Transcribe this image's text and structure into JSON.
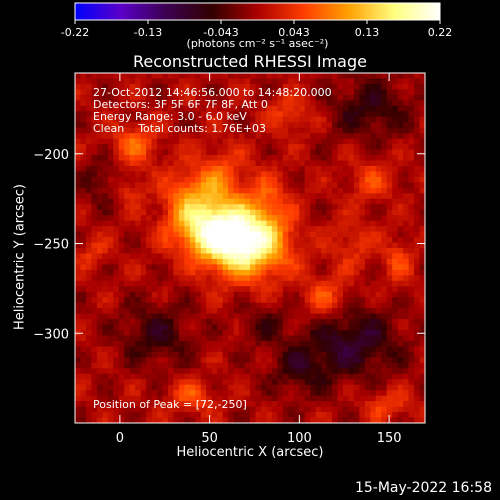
{
  "title": "Reconstructed RHESSI Image",
  "footer_timestamp": "15-May-2022 16:58",
  "colorbar": {
    "ticks": [
      "-0.22",
      "-0.13",
      "-0.043",
      "0.043",
      "0.13",
      "0.22"
    ],
    "unit_label": "(photons cm⁻² s⁻¹ asec⁻²)",
    "colormap": [
      "#0000ff",
      "#5a00c8",
      "#3c0050",
      "#320000",
      "#aa0000",
      "#ff3c00",
      "#ffa000",
      "#ffff80",
      "#ffffff"
    ]
  },
  "annotations": {
    "time_range": "27-Oct-2012 14:46:56.000 to 14:48:20.000",
    "detectors": "Detectors: 3F 5F 6F 7F 8F, Att 0",
    "energy_range": "Energy Range: 3.0 - 6.0 keV",
    "clean_info": "Clean    Total counts: 1.76E+03",
    "peak_position": "Position of Peak = [72,-250]"
  },
  "chart_data": {
    "type": "heatmap",
    "title": "Reconstructed RHESSI Image",
    "xlabel": "Heliocentric X (arcsec)",
    "ylabel": "Heliocentric Y (arcsec)",
    "xlim": [
      -25,
      170
    ],
    "ylim": [
      -350,
      -155
    ],
    "xticks": [
      0,
      50,
      100,
      150
    ],
    "yticks": [
      -200,
      -250,
      -300
    ],
    "zlim": [
      -0.22,
      0.22
    ],
    "peak": {
      "x": 72,
      "y": -250,
      "value": 0.22
    },
    "sources": [
      {
        "x": 70,
        "y": -250,
        "amp": 0.2,
        "sx": 16,
        "sy": 13
      },
      {
        "x": 52,
        "y": -243,
        "amp": 0.13,
        "sx": 15,
        "sy": 10
      },
      {
        "x": 40,
        "y": -225,
        "amp": 0.09,
        "sx": 11,
        "sy": 12
      },
      {
        "x": 58,
        "y": -215,
        "amp": 0.06,
        "sx": 9,
        "sy": 13
      },
      {
        "x": 82,
        "y": -225,
        "amp": 0.05,
        "sx": 8,
        "sy": 11
      },
      {
        "x": 8,
        "y": -195,
        "amp": 0.07,
        "sx": 9,
        "sy": 8
      },
      {
        "x": 5,
        "y": -220,
        "amp": 0.04,
        "sx": 6,
        "sy": 6
      },
      {
        "x": 95,
        "y": -178,
        "amp": 0.05,
        "sx": 9,
        "sy": 7
      },
      {
        "x": 115,
        "y": -280,
        "amp": 0.06,
        "sx": 9,
        "sy": 9
      },
      {
        "x": 130,
        "y": -250,
        "amp": 0.04,
        "sx": 8,
        "sy": 10
      },
      {
        "x": 40,
        "y": -335,
        "amp": 0.06,
        "sx": 9,
        "sy": 6
      },
      {
        "x": 150,
        "y": -340,
        "amp": 0.05,
        "sx": 10,
        "sy": 6
      },
      {
        "x": -15,
        "y": -255,
        "amp": 0.04,
        "sx": 6,
        "sy": 6
      },
      {
        "x": 140,
        "y": -215,
        "amp": 0.05,
        "sx": 9,
        "sy": 8
      },
      {
        "x": 155,
        "y": -260,
        "amp": 0.05,
        "sx": 6,
        "sy": 9
      },
      {
        "x": 20,
        "y": -300,
        "amp": -0.06,
        "sx": 14,
        "sy": 12
      },
      {
        "x": 130,
        "y": -305,
        "amp": -0.08,
        "sx": 18,
        "sy": 14
      },
      {
        "x": 140,
        "y": -175,
        "amp": -0.06,
        "sx": 16,
        "sy": 12
      },
      {
        "x": 100,
        "y": -320,
        "amp": -0.05,
        "sx": 12,
        "sy": 10
      },
      {
        "x": -10,
        "y": -215,
        "amp": -0.04,
        "sx": 8,
        "sy": 10
      },
      {
        "x": 80,
        "y": -295,
        "amp": -0.04,
        "sx": 10,
        "sy": 8
      }
    ]
  }
}
